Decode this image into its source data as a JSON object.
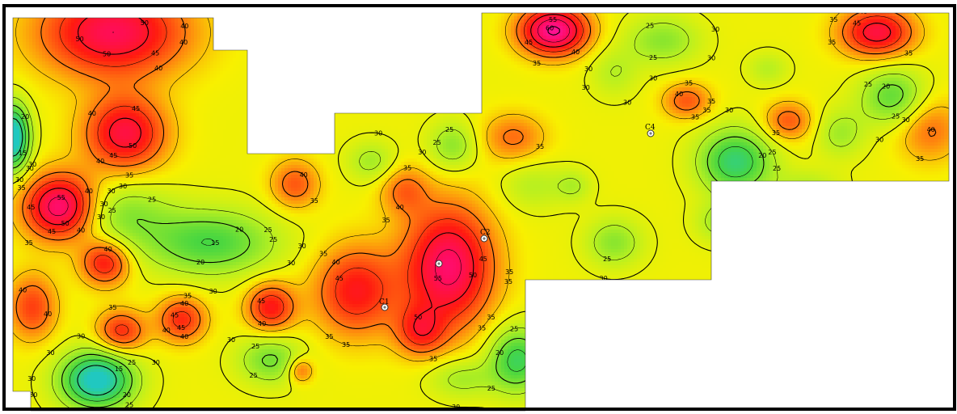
{
  "map": {
    "legend": null,
    "color_scale": {
      "stops": [
        {
          "value": 5,
          "color": "#20c8c0"
        },
        {
          "value": 15,
          "color": "#46d641"
        },
        {
          "value": 25,
          "color": "#b8f020"
        },
        {
          "value": 32,
          "color": "#f8f000"
        },
        {
          "value": 40,
          "color": "#ff7a10"
        },
        {
          "value": 48,
          "color": "#ff1a10"
        },
        {
          "value": 56,
          "color": "#ff0c60"
        },
        {
          "value": 65,
          "color": "#ff18c0"
        }
      ]
    },
    "contour_interval": 5,
    "contour_labels": [
      "15",
      "20",
      "25",
      "30",
      "35",
      "40",
      "45",
      "50",
      "55",
      "60"
    ],
    "sample_points": [
      {
        "id": "C1",
        "label": "C1"
      },
      {
        "id": "C2",
        "label": "C2"
      },
      {
        "id": "C3",
        "label": ""
      },
      {
        "id": "C4",
        "label": "C4"
      }
    ]
  }
}
